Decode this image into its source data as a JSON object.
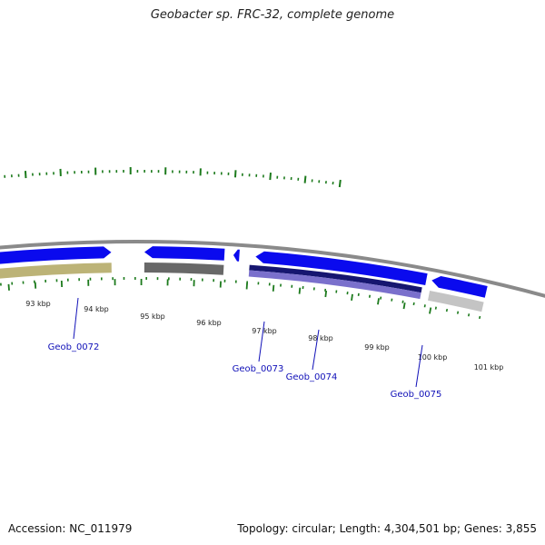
{
  "title": "Geobacter sp. FRC-32, complete genome",
  "footer": {
    "accession": "Accession: NC_011979",
    "stats": "Topology: circular; Length: 4,304,501 bp; Genes: 3,855"
  },
  "colors": {
    "tick": "#1c7a1c",
    "backbone": "#8a8a8a",
    "cds_forward": "#0a0aee",
    "cds_dark": "#161670",
    "cds_light": "#7a70cc",
    "cds_olive": "#bcb377",
    "cds_gray": "#686868",
    "cds_lightgray": "#c4c4c4",
    "label": "#1010b8"
  },
  "tick_labels": [
    "93 kbp",
    "94 kbp",
    "95 kbp",
    "96 kbp",
    "97 kbp",
    "98 kbp",
    "99 kbp",
    "100 kbp",
    "101 kbp"
  ],
  "genes": [
    {
      "label": "Geob_0072"
    },
    {
      "label": "Geob_0073"
    },
    {
      "label": "Geob_0074"
    },
    {
      "label": "Geob_0075"
    }
  ]
}
